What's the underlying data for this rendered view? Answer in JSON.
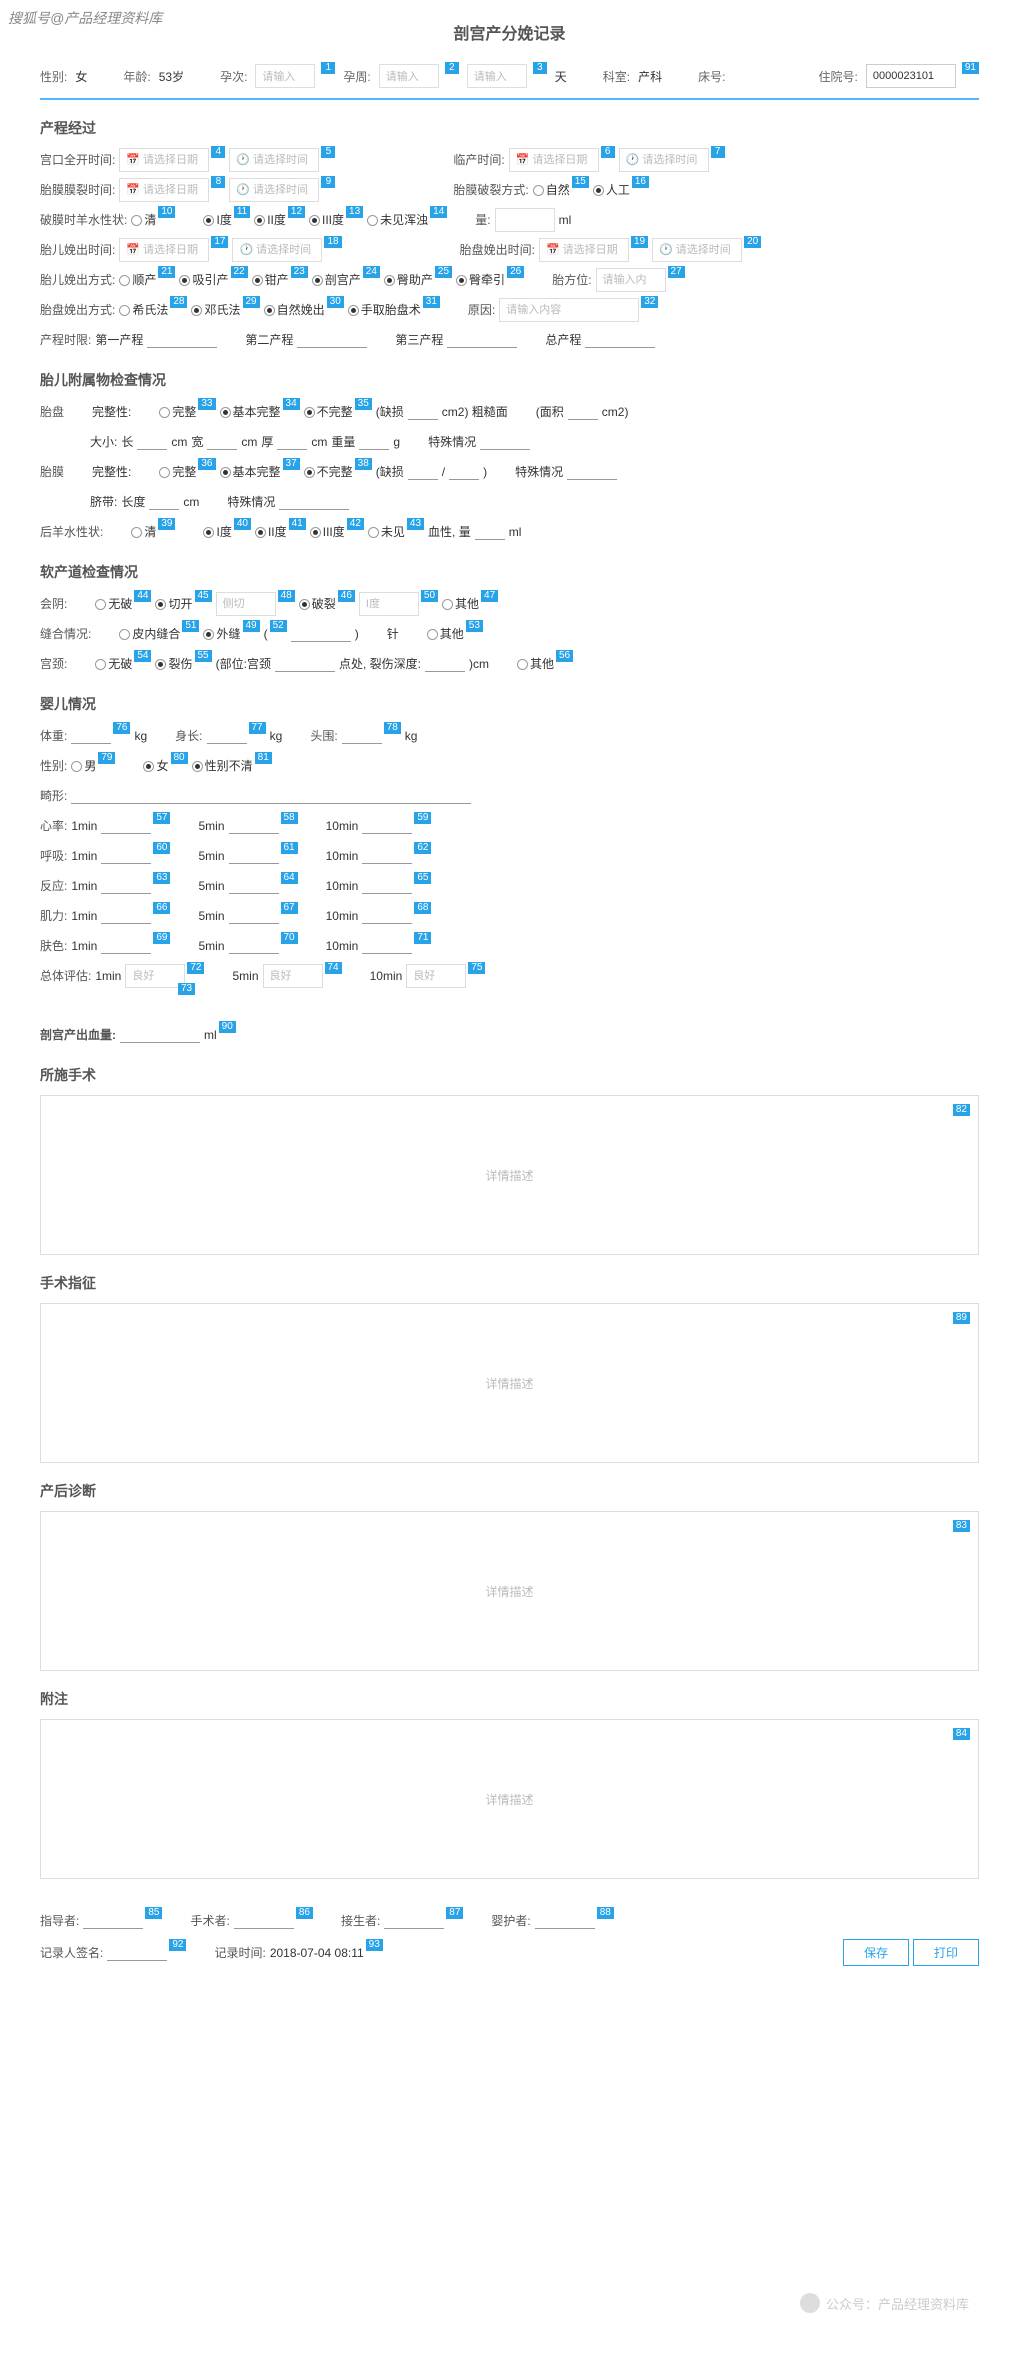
{
  "watermark_top": "搜狐号@产品经理资料库",
  "title": "剖宫产分娩记录",
  "header": {
    "sex_lbl": "性别:",
    "sex": "女",
    "age_lbl": "年龄:",
    "age": "53岁",
    "preg_lbl": "孕次:",
    "preg_ph": "请输入",
    "week_lbl": "孕周:",
    "week_ph": "请输入",
    "week2_ph": "请输入",
    "week_unit": "天",
    "dept_lbl": "科室:",
    "dept": "产科",
    "bed_lbl": "床号:",
    "hosp_lbl": "住院号:",
    "hosp": "0000023101"
  },
  "s1": {
    "title": "产程经过",
    "r1": {
      "a": "宫口全开时间:",
      "b": "临产时间:"
    },
    "r2": {
      "a": "胎膜膜裂时间:",
      "b": "胎膜破裂方式:",
      "o1": "自然",
      "o2": "人工"
    },
    "r3": {
      "a": "破膜时羊水性状:",
      "o1": "清",
      "o2": "I度",
      "o3": "II度",
      "o4": "III度",
      "o5": "未见浑浊",
      "qty": "量:",
      "unit": "ml"
    },
    "r4": {
      "a": "胎儿娩出时间:",
      "b": "胎盘娩出时间:"
    },
    "r5": {
      "a": "胎儿娩出方式:",
      "o1": "顺产",
      "o2": "吸引产",
      "o3": "钳产",
      "o4": "剖宫产",
      "o5": "臀助产",
      "o6": "臀牵引",
      "b": "胎方位:"
    },
    "r6": {
      "a": "胎盘娩出方式:",
      "o1": "希氏法",
      "o2": "邓氏法",
      "o3": "自然娩出",
      "o4": "手取胎盘术",
      "b": "原因:"
    },
    "r7": {
      "a": "产程时限:",
      "b": "第一产程",
      "c": "第二产程",
      "d": "第三产程",
      "e": "总产程"
    }
  },
  "ph": {
    "date": "请选择日期",
    "time": "请选择时间",
    "text": "请输入内",
    "text2": "请输入内容"
  },
  "s2": {
    "title": "胎儿附属物检查情况",
    "r1": {
      "a": "胎盘",
      "b": "完整性:",
      "o1": "完整",
      "o2": "基本完整",
      "o3": "不完整",
      "c": "(缺损",
      "d": "cm2) 粗糙面",
      "e": "(面积",
      "f": "cm2)"
    },
    "r2": {
      "a": "大小:",
      "b": "长",
      "c": "cm",
      "d": "宽",
      "e": "cm",
      "f": "厚",
      "g": "cm",
      "h": "重量",
      "i": "g",
      "j": "特殊情况"
    },
    "r3": {
      "a": "胎膜",
      "b": "完整性:",
      "o1": "完整",
      "o2": "基本完整",
      "o3": "不完整",
      "c": "(缺损",
      "d": "/",
      "e": ")",
      "f": "特殊情况"
    },
    "r4": {
      "a": "脐带:",
      "b": "长度",
      "c": "cm",
      "d": "特殊情况"
    },
    "r5": {
      "a": "后羊水性状:",
      "o1": "清",
      "o2": "I度",
      "o3": "II度",
      "o4": "III度",
      "o5": "未见",
      "b": "血性, 量",
      "c": "ml"
    }
  },
  "s3": {
    "title": "软产道检查情况",
    "r1": {
      "a": "会阴:",
      "o1": "无破",
      "o2": "切开",
      "sub1": "侧切",
      "o3": "破裂",
      "sub2": "I度",
      "o4": "其他"
    },
    "r2": {
      "a": "缝合情况:",
      "o1": "皮内缝合",
      "o2": "外缝",
      "sub": "(",
      "sub2": ")",
      "b": "针",
      "o3": "其他"
    },
    "r3": {
      "a": "宫颈:",
      "o1": "无破",
      "o2": "裂伤",
      "b": "(部位:宫颈",
      "c": "点处, 裂伤深度:",
      "d": ")cm",
      "o3": "其他"
    }
  },
  "s4": {
    "title": "婴儿情况",
    "r1": {
      "a": "体重:",
      "u": "kg",
      "b": "身长:",
      "c": "头围:"
    },
    "r2": {
      "a": "性别:",
      "o1": "男",
      "o2": "女",
      "o3": "性别不清"
    },
    "r3": {
      "a": "畸形:"
    },
    "rows": [
      "心率:",
      "呼吸:",
      "反应:",
      "肌力:",
      "肤色:"
    ],
    "times": [
      "1min",
      "5min",
      "10min"
    ],
    "total": "总体评估:",
    "good": "良好"
  },
  "s5": {
    "a": "剖宫产出血量:",
    "u": "ml"
  },
  "s6": {
    "t1": "所施手术",
    "t2": "手术指征",
    "t3": "产后诊断",
    "t4": "附注",
    "ph": "详情描述"
  },
  "footer": {
    "a": "指导者:",
    "b": "手术者:",
    "c": "接生者:",
    "d": "婴护者:",
    "e": "记录人签名:",
    "f": "记录时间:",
    "time": "2018-07-04  08:11",
    "save": "保存",
    "print": "打印"
  },
  "watermark_bottom": "公众号：产品经理资料库",
  "badges": {
    "h1": "1",
    "h2": "2",
    "h3": "3",
    "h4": "91",
    "b4": "4",
    "b5": "5",
    "b6": "6",
    "b7": "7",
    "b8": "8",
    "b9": "9",
    "b10": "10",
    "b11": "11",
    "b12": "12",
    "b13": "13",
    "b14": "14",
    "b15": "15",
    "b16": "16",
    "b17": "17",
    "b18": "18",
    "b19": "19",
    "b20": "20",
    "b21": "21",
    "b22": "22",
    "b23": "23",
    "b24": "24",
    "b25": "25",
    "b26": "26",
    "b27": "27",
    "b28": "28",
    "b29": "29",
    "b30": "30",
    "b31": "31",
    "b32": "32",
    "b33": "33",
    "b34": "34",
    "b35": "35",
    "b36": "36",
    "b37": "37",
    "b38": "38",
    "b39": "39",
    "b40": "40",
    "b41": "41",
    "b42": "42",
    "b43": "43",
    "b44": "44",
    "b45": "45",
    "b46": "46",
    "b47": "47",
    "b48": "48",
    "b49": "49",
    "b50": "50",
    "b51": "51",
    "b52": "52",
    "b53": "53",
    "b54": "54",
    "b55": "55",
    "b56": "56",
    "b57": "57",
    "b58": "58",
    "b59": "59",
    "b60": "60",
    "b61": "61",
    "b62": "62",
    "b63": "63",
    "b64": "64",
    "b65": "65",
    "b66": "66",
    "b67": "67",
    "b68": "68",
    "b69": "69",
    "b70": "70",
    "b71": "71",
    "b72": "72",
    "b73": "73",
    "b74": "74",
    "b75": "75",
    "b76": "76",
    "b77": "77",
    "b78": "78",
    "b79": "79",
    "b80": "80",
    "b81": "81",
    "b82": "82",
    "b83": "83",
    "b84": "84",
    "b85": "85",
    "b86": "86",
    "b87": "87",
    "b88": "88",
    "b89": "89",
    "b90": "90",
    "b92": "92",
    "b93": "93"
  }
}
